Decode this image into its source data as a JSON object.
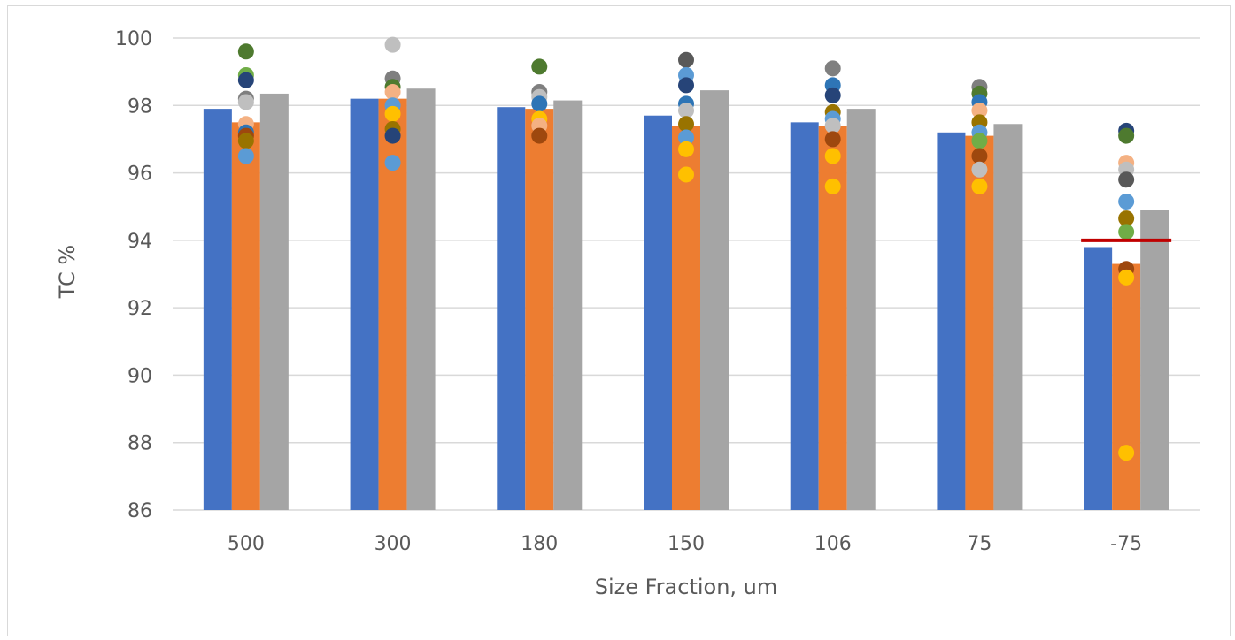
{
  "chart_data": {
    "type": "bar",
    "xlabel": "Size Fraction, um",
    "ylabel": "TC %",
    "ylim": [
      86,
      100
    ],
    "y_ticks": [
      "86",
      "88",
      "90",
      "92",
      "94",
      "96",
      "98",
      "100"
    ],
    "categories": [
      "500",
      "300",
      "180",
      "150",
      "106",
      "75",
      "-75"
    ],
    "grid": true,
    "series": [
      {
        "color": "#4472c4",
        "values": [
          97.9,
          98.2,
          97.95,
          97.7,
          97.5,
          97.2,
          93.8
        ]
      },
      {
        "color": "#ed7d31",
        "values": [
          97.5,
          98.2,
          97.9,
          97.4,
          97.4,
          97.1,
          93.3
        ]
      },
      {
        "color": "#a5a5a5",
        "values": [
          98.35,
          98.5,
          98.15,
          98.45,
          97.9,
          97.45,
          94.9
        ]
      }
    ],
    "overlay_points": [
      {
        "category": "500",
        "values": [
          {
            "y": 99.6,
            "color": "#4e7a2f"
          },
          {
            "y": 98.9,
            "color": "#70ad47"
          },
          {
            "y": 98.75,
            "color": "#264478"
          },
          {
            "y": 98.2,
            "color": "#7f7f7f"
          },
          {
            "y": 98.1,
            "color": "#bfbfbf"
          },
          {
            "y": 97.45,
            "color": "#f4b183"
          },
          {
            "y": 97.2,
            "color": "#2e75b6"
          },
          {
            "y": 97.1,
            "color": "#9e480e"
          },
          {
            "y": 96.95,
            "color": "#997300"
          },
          {
            "y": 96.5,
            "color": "#5b9bd5"
          }
        ]
      },
      {
        "category": "300",
        "values": [
          {
            "y": 99.8,
            "color": "#bfbfbf"
          },
          {
            "y": 98.8,
            "color": "#7f7f7f"
          },
          {
            "y": 98.55,
            "color": "#4e7a2f"
          },
          {
            "y": 98.4,
            "color": "#f4b183"
          },
          {
            "y": 98.0,
            "color": "#5b9bd5"
          },
          {
            "y": 97.75,
            "color": "#ffc000"
          },
          {
            "y": 97.3,
            "color": "#997300"
          },
          {
            "y": 97.1,
            "color": "#264478"
          },
          {
            "y": 96.3,
            "color": "#5b9bd5"
          }
        ]
      },
      {
        "category": "180",
        "values": [
          {
            "y": 99.15,
            "color": "#4e7a2f"
          },
          {
            "y": 98.4,
            "color": "#7f7f7f"
          },
          {
            "y": 98.25,
            "color": "#bfbfbf"
          },
          {
            "y": 98.05,
            "color": "#2e75b6"
          },
          {
            "y": 97.6,
            "color": "#ffc000"
          },
          {
            "y": 97.4,
            "color": "#f4b183"
          },
          {
            "y": 97.1,
            "color": "#9e480e"
          }
        ]
      },
      {
        "category": "150",
        "values": [
          {
            "y": 99.35,
            "color": "#595959"
          },
          {
            "y": 98.9,
            "color": "#5b9bd5"
          },
          {
            "y": 98.6,
            "color": "#264478"
          },
          {
            "y": 98.05,
            "color": "#2e75b6"
          },
          {
            "y": 97.85,
            "color": "#bfbfbf"
          },
          {
            "y": 97.45,
            "color": "#997300"
          },
          {
            "y": 97.05,
            "color": "#5b9bd5"
          },
          {
            "y": 96.7,
            "color": "#ffc000"
          },
          {
            "y": 95.95,
            "color": "#ffc000"
          }
        ]
      },
      {
        "category": "106",
        "values": [
          {
            "y": 99.1,
            "color": "#7f7f7f"
          },
          {
            "y": 98.6,
            "color": "#2e75b6"
          },
          {
            "y": 98.3,
            "color": "#264478"
          },
          {
            "y": 97.8,
            "color": "#997300"
          },
          {
            "y": 97.6,
            "color": "#5b9bd5"
          },
          {
            "y": 97.4,
            "color": "#bfbfbf"
          },
          {
            "y": 97.0,
            "color": "#9e480e"
          },
          {
            "y": 96.5,
            "color": "#ffc000"
          },
          {
            "y": 95.6,
            "color": "#ffc000"
          }
        ]
      },
      {
        "category": "75",
        "values": [
          {
            "y": 98.55,
            "color": "#7f7f7f"
          },
          {
            "y": 98.35,
            "color": "#4e7a2f"
          },
          {
            "y": 98.1,
            "color": "#2e75b6"
          },
          {
            "y": 97.85,
            "color": "#f4b183"
          },
          {
            "y": 97.5,
            "color": "#997300"
          },
          {
            "y": 97.2,
            "color": "#5b9bd5"
          },
          {
            "y": 96.95,
            "color": "#70ad47"
          },
          {
            "y": 96.5,
            "color": "#9e480e"
          },
          {
            "y": 96.1,
            "color": "#bfbfbf"
          },
          {
            "y": 95.6,
            "color": "#ffc000"
          }
        ]
      },
      {
        "category": "-75",
        "values": [
          {
            "y": 97.25,
            "color": "#264478"
          },
          {
            "y": 97.1,
            "color": "#4e7a2f"
          },
          {
            "y": 96.3,
            "color": "#f4b183"
          },
          {
            "y": 96.1,
            "color": "#bfbfbf"
          },
          {
            "y": 95.8,
            "color": "#595959"
          },
          {
            "y": 95.15,
            "color": "#5b9bd5"
          },
          {
            "y": 94.65,
            "color": "#997300"
          },
          {
            "y": 94.25,
            "color": "#70ad47"
          },
          {
            "y": 93.15,
            "color": "#9e480e"
          },
          {
            "y": 92.9,
            "color": "#ffc000"
          },
          {
            "y": 87.7,
            "color": "#ffc000"
          }
        ]
      }
    ],
    "reference_line": {
      "category": "-75",
      "y": 94.0,
      "color": "#c00000"
    }
  }
}
